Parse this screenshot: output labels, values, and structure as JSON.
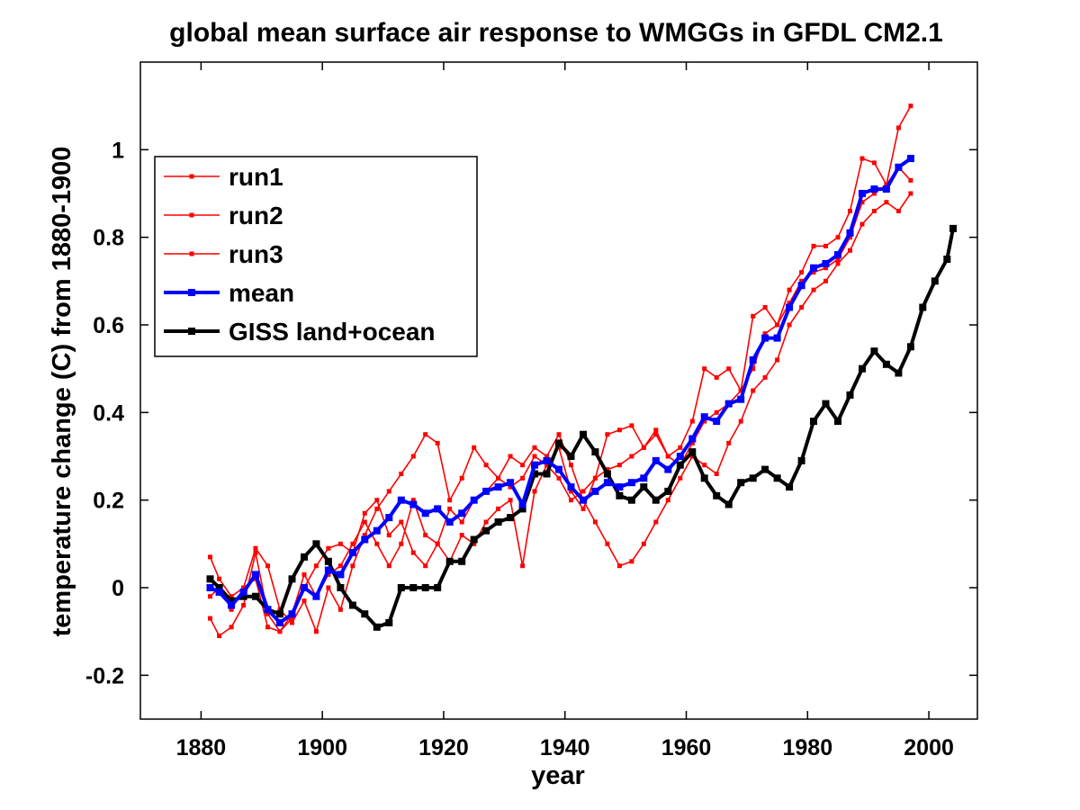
{
  "chart_data": {
    "type": "line",
    "title": "global mean surface air response to WMGGs in GFDL CM2.1",
    "xlabel": "year",
    "ylabel": "temperature change (C) from 1880-1900",
    "xlim": [
      1870,
      2008
    ],
    "ylim": [
      -0.3,
      1.2
    ],
    "xticks": [
      1880,
      1900,
      1920,
      1940,
      1960,
      1980,
      2000
    ],
    "yticks": [
      -0.2,
      0,
      0.2,
      0.4,
      0.6,
      0.8,
      1
    ],
    "ytick_labels": [
      "-0.2",
      "0",
      "0.2",
      "0.4",
      "0.6",
      "0.8",
      "1"
    ],
    "grid": false,
    "legend_position": "upper-left",
    "series": [
      {
        "name": "run1",
        "color": "#ff0000",
        "marker": "square",
        "x": [
          1881.5,
          1883,
          1885,
          1887,
          1889,
          1891,
          1893,
          1895,
          1897,
          1899,
          1901,
          1903,
          1905,
          1907,
          1909,
          1911,
          1913,
          1915,
          1917,
          1919,
          1921,
          1923,
          1925,
          1927,
          1929,
          1931,
          1933,
          1935,
          1937,
          1939,
          1941,
          1943,
          1945,
          1947,
          1949,
          1951,
          1953,
          1955,
          1957,
          1959,
          1961,
          1963,
          1965,
          1967,
          1969,
          1971,
          1973,
          1975,
          1977,
          1979,
          1981,
          1983,
          1985,
          1987,
          1989,
          1991,
          1993,
          1995,
          1997
        ],
        "y": [
          -0.07,
          -0.11,
          -0.09,
          -0.04,
          0.08,
          -0.06,
          -0.1,
          -0.06,
          0.03,
          -0.02,
          0.03,
          0.05,
          0.1,
          0.15,
          0.1,
          0.05,
          0.1,
          0.2,
          0.12,
          0.1,
          0.18,
          0.15,
          0.2,
          0.22,
          0.25,
          0.23,
          0.25,
          0.3,
          0.28,
          0.25,
          0.2,
          0.22,
          0.25,
          0.27,
          0.28,
          0.3,
          0.32,
          0.35,
          0.3,
          0.28,
          0.33,
          0.38,
          0.4,
          0.42,
          0.45,
          0.5,
          0.58,
          0.6,
          0.65,
          0.7,
          0.72,
          0.73,
          0.75,
          0.8,
          0.88,
          0.9,
          0.92,
          0.96,
          0.93
        ]
      },
      {
        "name": "run2",
        "color": "#ff0000",
        "marker": "square",
        "x": [
          1881.5,
          1883,
          1885,
          1887,
          1889,
          1891,
          1893,
          1895,
          1897,
          1899,
          1901,
          1903,
          1905,
          1907,
          1909,
          1911,
          1913,
          1915,
          1917,
          1919,
          1921,
          1923,
          1925,
          1927,
          1929,
          1931,
          1933,
          1935,
          1937,
          1939,
          1941,
          1943,
          1945,
          1947,
          1949,
          1951,
          1953,
          1955,
          1957,
          1959,
          1961,
          1963,
          1965,
          1967,
          1969,
          1971,
          1973,
          1975,
          1977,
          1979,
          1981,
          1983,
          1985,
          1987,
          1989,
          1991,
          1993,
          1995,
          1997
        ],
        "y": [
          0.07,
          0.02,
          -0.02,
          0.0,
          0.09,
          0.05,
          -0.05,
          -0.08,
          -0.03,
          -0.1,
          0.0,
          -0.05,
          0.05,
          0.12,
          0.18,
          0.22,
          0.26,
          0.3,
          0.35,
          0.33,
          0.2,
          0.25,
          0.32,
          0.28,
          0.25,
          0.3,
          0.28,
          0.32,
          0.3,
          0.35,
          0.28,
          0.2,
          0.15,
          0.1,
          0.05,
          0.06,
          0.1,
          0.15,
          0.2,
          0.25,
          0.3,
          0.28,
          0.26,
          0.33,
          0.38,
          0.45,
          0.48,
          0.52,
          0.6,
          0.64,
          0.68,
          0.7,
          0.74,
          0.77,
          0.83,
          0.86,
          0.88,
          0.86,
          0.9
        ]
      },
      {
        "name": "run3",
        "color": "#ff0000",
        "marker": "square",
        "x": [
          1881.5,
          1883,
          1885,
          1887,
          1889,
          1891,
          1893,
          1895,
          1897,
          1899,
          1901,
          1903,
          1905,
          1907,
          1909,
          1911,
          1913,
          1915,
          1917,
          1919,
          1921,
          1923,
          1925,
          1927,
          1929,
          1931,
          1933,
          1935,
          1937,
          1939,
          1941,
          1943,
          1945,
          1947,
          1949,
          1951,
          1953,
          1955,
          1957,
          1959,
          1961,
          1963,
          1965,
          1967,
          1969,
          1971,
          1973,
          1975,
          1977,
          1979,
          1981,
          1983,
          1985,
          1987,
          1989,
          1991,
          1993,
          1995,
          1997
        ],
        "y": [
          -0.02,
          0.0,
          -0.05,
          0.0,
          0.02,
          -0.09,
          -0.1,
          -0.07,
          0.0,
          0.05,
          0.09,
          0.1,
          0.08,
          0.17,
          0.2,
          0.12,
          0.15,
          0.08,
          0.05,
          0.1,
          0.06,
          0.12,
          0.1,
          0.15,
          0.18,
          0.2,
          0.05,
          0.22,
          0.28,
          0.32,
          0.22,
          0.18,
          0.25,
          0.35,
          0.36,
          0.37,
          0.32,
          0.36,
          0.3,
          0.32,
          0.38,
          0.5,
          0.48,
          0.5,
          0.45,
          0.62,
          0.64,
          0.6,
          0.68,
          0.72,
          0.78,
          0.78,
          0.8,
          0.86,
          0.98,
          0.97,
          0.92,
          1.05,
          1.1
        ]
      },
      {
        "name": "mean",
        "color": "#0000ff",
        "marker": "square",
        "x": [
          1881.5,
          1883,
          1885,
          1887,
          1889,
          1891,
          1893,
          1895,
          1897,
          1899,
          1901,
          1903,
          1905,
          1907,
          1909,
          1911,
          1913,
          1915,
          1917,
          1919,
          1921,
          1923,
          1925,
          1927,
          1929,
          1931,
          1933,
          1935,
          1937,
          1939,
          1941,
          1943,
          1945,
          1947,
          1949,
          1951,
          1953,
          1955,
          1957,
          1959,
          1961,
          1963,
          1965,
          1967,
          1969,
          1971,
          1973,
          1975,
          1977,
          1979,
          1981,
          1983,
          1985,
          1987,
          1989,
          1991,
          1993,
          1995,
          1997
        ],
        "y": [
          0.0,
          -0.01,
          -0.04,
          -0.01,
          0.03,
          -0.05,
          -0.08,
          -0.06,
          0.0,
          -0.02,
          0.04,
          0.03,
          0.08,
          0.11,
          0.13,
          0.16,
          0.2,
          0.19,
          0.17,
          0.18,
          0.15,
          0.17,
          0.2,
          0.22,
          0.23,
          0.24,
          0.19,
          0.28,
          0.29,
          0.27,
          0.23,
          0.2,
          0.22,
          0.24,
          0.23,
          0.24,
          0.25,
          0.29,
          0.27,
          0.3,
          0.34,
          0.39,
          0.38,
          0.42,
          0.43,
          0.52,
          0.57,
          0.57,
          0.64,
          0.69,
          0.73,
          0.74,
          0.76,
          0.81,
          0.9,
          0.91,
          0.91,
          0.96,
          0.98
        ]
      },
      {
        "name": "GISS land+ocean",
        "color": "#000000",
        "marker": "square",
        "x": [
          1881.5,
          1883,
          1885,
          1887,
          1889,
          1891,
          1893,
          1895,
          1897,
          1899,
          1901,
          1903,
          1905,
          1907,
          1909,
          1911,
          1913,
          1915,
          1917,
          1919,
          1921,
          1923,
          1925,
          1927,
          1929,
          1931,
          1933,
          1935,
          1937,
          1939,
          1941,
          1943,
          1945,
          1947,
          1949,
          1951,
          1953,
          1955,
          1957,
          1959,
          1961,
          1963,
          1965,
          1967,
          1969,
          1971,
          1973,
          1975,
          1977,
          1979,
          1981,
          1983,
          1985,
          1987,
          1989,
          1991,
          1993,
          1995,
          1997,
          1999,
          2001,
          2003,
          2004
        ],
        "y": [
          0.02,
          0.0,
          -0.03,
          -0.02,
          -0.02,
          -0.05,
          -0.06,
          0.02,
          0.07,
          0.1,
          0.06,
          0.0,
          -0.04,
          -0.06,
          -0.09,
          -0.08,
          0.0,
          0.0,
          0.0,
          0.0,
          0.06,
          0.06,
          0.11,
          0.13,
          0.15,
          0.16,
          0.18,
          0.26,
          0.26,
          0.33,
          0.3,
          0.35,
          0.31,
          0.26,
          0.21,
          0.2,
          0.23,
          0.2,
          0.22,
          0.28,
          0.31,
          0.25,
          0.21,
          0.19,
          0.24,
          0.25,
          0.27,
          0.25,
          0.23,
          0.29,
          0.38,
          0.42,
          0.38,
          0.44,
          0.5,
          0.54,
          0.51,
          0.49,
          0.55,
          0.64,
          0.7,
          0.75,
          0.82
        ]
      }
    ]
  }
}
